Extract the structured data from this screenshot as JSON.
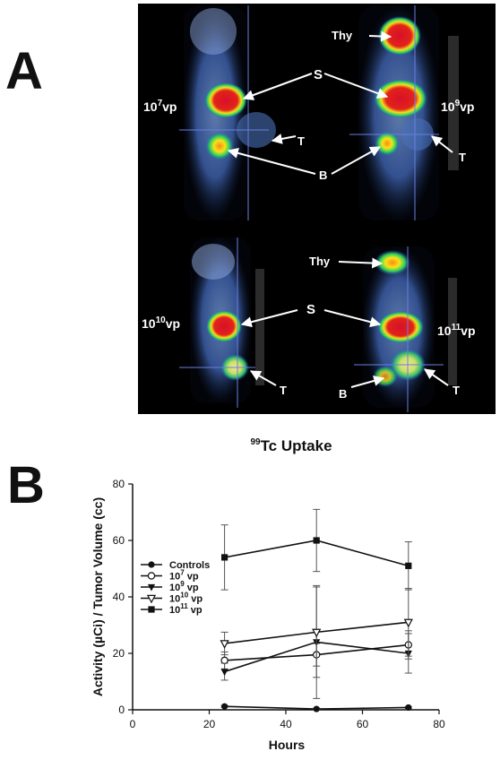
{
  "panel_a": {
    "letter": "A",
    "images": [
      {
        "dose_base": "10",
        "dose_exp": "7",
        "dose_unit": "vp"
      },
      {
        "dose_base": "10",
        "dose_exp": "9",
        "dose_unit": "vp"
      },
      {
        "dose_base": "10",
        "dose_exp": "10",
        "dose_unit": "vp"
      },
      {
        "dose_base": "10",
        "dose_exp": "11",
        "dose_unit": "vp"
      }
    ],
    "labels": {
      "thyroid": "Thy",
      "stomach": "S",
      "tumor": "T",
      "bladder": "B"
    }
  },
  "panel_b": {
    "letter": "B",
    "title_sup": "99",
    "title_main": "Tc Uptake"
  },
  "chart_data": {
    "type": "line",
    "title": "99Tc Uptake",
    "xlabel": "Hours",
    "ylabel": "Activity (µCi) / Tumor Volume (cc)",
    "xlim": [
      0,
      80
    ],
    "ylim": [
      0,
      80
    ],
    "xticks": [
      "0",
      "20",
      "40",
      "60",
      "80"
    ],
    "yticks": [
      "0",
      "20",
      "40",
      "60",
      "80"
    ],
    "x": [
      24,
      48,
      72
    ],
    "series": [
      {
        "name": "Controls",
        "name_base": "Controls",
        "name_exp": "",
        "name_unit": "",
        "marker": "filled-circle",
        "values": [
          1.2,
          0.3,
          0.8
        ],
        "err": [
          0.3,
          0.3,
          0.3
        ]
      },
      {
        "name": "10^7 vp",
        "name_base": "10",
        "name_exp": "7",
        "name_unit": "vp",
        "marker": "open-circle",
        "values": [
          17.5,
          19.5,
          23
        ],
        "err": [
          3,
          4,
          5
        ]
      },
      {
        "name": "10^9 vp",
        "name_base": "10",
        "name_exp": "9",
        "name_unit": "vp",
        "marker": "filled-triangle-down",
        "values": [
          13.5,
          24,
          20
        ],
        "err": [
          3,
          20,
          7
        ]
      },
      {
        "name": "10^10 vp",
        "name_base": "10",
        "name_exp": "10",
        "name_unit": "vp",
        "marker": "open-triangle-down",
        "values": [
          23.5,
          27.5,
          31
        ],
        "err": [
          4,
          16,
          12
        ]
      },
      {
        "name": "10^11 vp",
        "name_base": "10",
        "name_exp": "11",
        "name_unit": "vp",
        "marker": "filled-square",
        "values": [
          54,
          60,
          51
        ],
        "err": [
          11.5,
          11,
          8.5
        ]
      }
    ],
    "legend_position": "left"
  }
}
